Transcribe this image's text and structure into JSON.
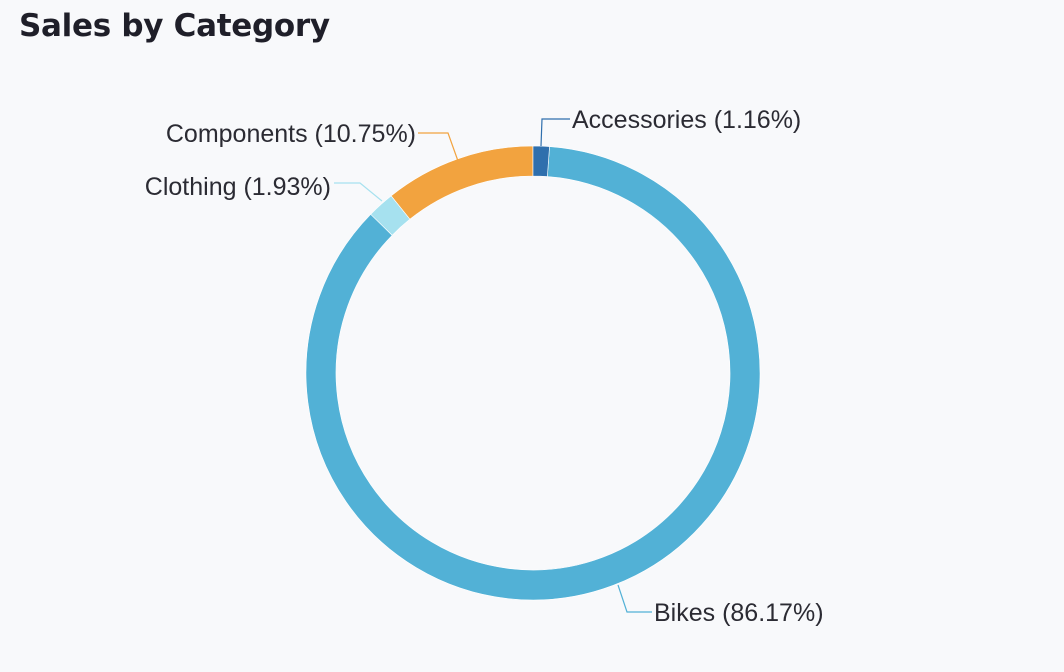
{
  "panel": {
    "title": "Sales by Category"
  },
  "chart_data": {
    "type": "pie",
    "variant": "donut",
    "start": "top, clockwise",
    "categories": [
      "Bikes",
      "Accessories",
      "Components",
      "Clothing"
    ],
    "values": [
      86.17,
      1.16,
      10.75,
      1.93
    ],
    "unit": "%",
    "labels": [
      "Bikes (86.17%)",
      "Accessories (1.16%)",
      "Components (10.75%)",
      "Clothing (1.93%)"
    ],
    "colors": [
      "#52b1d6",
      "#2f6fad",
      "#f2a33f",
      "#a6e1ef"
    ],
    "legend": "none"
  }
}
